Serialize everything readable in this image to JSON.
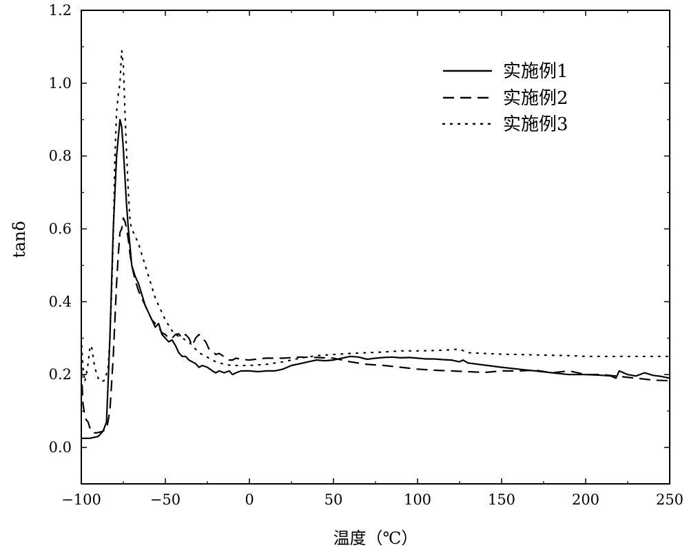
{
  "chart_data": {
    "type": "line",
    "title": "",
    "xlabel": "温度（℃）",
    "ylabel": "tanδ",
    "xlim": [
      -100,
      250
    ],
    "ylim": [
      -0.1,
      1.2
    ],
    "xticks": [
      -100,
      -50,
      0,
      50,
      100,
      150,
      200,
      250
    ],
    "xtick_labels": [
      "−100",
      "−50",
      "0",
      "50",
      "100",
      "150",
      "200",
      "250"
    ],
    "yticks": [
      0.0,
      0.2,
      0.4,
      0.6,
      0.8,
      1.0,
      1.2
    ],
    "ytick_labels": [
      "0.0",
      "0.2",
      "0.4",
      "0.6",
      "0.8",
      "1.0",
      "1.2"
    ],
    "grid": false,
    "legend_position": "top-right",
    "series": [
      {
        "name": "实施例1",
        "style": "solid",
        "x": [
          -100,
          -95,
          -90,
          -87,
          -85,
          -83,
          -81,
          -79,
          -77,
          -76,
          -75,
          -74,
          -73,
          -72,
          -71,
          -70,
          -68,
          -66,
          -64,
          -62,
          -60,
          -58,
          -56,
          -54,
          -52,
          -50,
          -48,
          -46,
          -44,
          -42,
          -40,
          -38,
          -36,
          -34,
          -32,
          -30,
          -28,
          -25,
          -22,
          -20,
          -18,
          -15,
          -12,
          -10,
          -8,
          -5,
          0,
          5,
          10,
          15,
          20,
          25,
          30,
          35,
          40,
          45,
          50,
          55,
          60,
          65,
          70,
          75,
          80,
          85,
          90,
          95,
          100,
          105,
          110,
          115,
          120,
          125,
          127,
          130,
          140,
          150,
          160,
          170,
          180,
          190,
          200,
          210,
          215,
          218,
          220,
          225,
          230,
          235,
          240,
          245,
          250
        ],
        "values": [
          0.025,
          0.025,
          0.03,
          0.045,
          0.07,
          0.3,
          0.6,
          0.8,
          0.9,
          0.88,
          0.82,
          0.74,
          0.66,
          0.6,
          0.55,
          0.5,
          0.47,
          0.45,
          0.42,
          0.39,
          0.37,
          0.35,
          0.33,
          0.34,
          0.31,
          0.3,
          0.29,
          0.295,
          0.28,
          0.26,
          0.25,
          0.25,
          0.24,
          0.235,
          0.23,
          0.22,
          0.225,
          0.22,
          0.21,
          0.205,
          0.21,
          0.205,
          0.21,
          0.2,
          0.205,
          0.21,
          0.21,
          0.208,
          0.21,
          0.21,
          0.215,
          0.225,
          0.23,
          0.235,
          0.24,
          0.238,
          0.24,
          0.245,
          0.25,
          0.248,
          0.242,
          0.245,
          0.247,
          0.248,
          0.246,
          0.247,
          0.245,
          0.243,
          0.243,
          0.241,
          0.24,
          0.235,
          0.24,
          0.232,
          0.226,
          0.22,
          0.215,
          0.21,
          0.205,
          0.2,
          0.2,
          0.198,
          0.196,
          0.19,
          0.21,
          0.2,
          0.196,
          0.205,
          0.198,
          0.195,
          0.19
        ]
      },
      {
        "name": "实施例2",
        "style": "dashed",
        "x": [
          -100,
          -99,
          -98,
          -97,
          -96,
          -95,
          -94,
          -93,
          -91,
          -89,
          -87,
          -85,
          -83,
          -81,
          -80,
          -79,
          -78,
          -77,
          -76,
          -75,
          -74,
          -73,
          -72,
          -71,
          -70,
          -68,
          -66,
          -64,
          -62,
          -60,
          -58,
          -56,
          -54,
          -52,
          -50,
          -48,
          -46,
          -44,
          -42,
          -40,
          -38,
          -36,
          -34,
          -32,
          -30,
          -28,
          -26,
          -24,
          -22,
          -20,
          -18,
          -16,
          -14,
          -12,
          -10,
          -8,
          -5,
          0,
          5,
          10,
          20,
          30,
          40,
          50,
          60,
          70,
          80,
          90,
          100,
          110,
          120,
          130,
          140,
          150,
          160,
          170,
          180,
          190,
          200,
          210,
          220,
          230,
          240,
          250
        ],
        "values": [
          0.22,
          0.12,
          0.09,
          0.075,
          0.07,
          0.055,
          0.045,
          0.04,
          0.04,
          0.042,
          0.045,
          0.05,
          0.1,
          0.25,
          0.35,
          0.45,
          0.53,
          0.59,
          0.6,
          0.63,
          0.62,
          0.6,
          0.57,
          0.53,
          0.5,
          0.46,
          0.43,
          0.41,
          0.39,
          0.37,
          0.35,
          0.34,
          0.33,
          0.315,
          0.31,
          0.3,
          0.3,
          0.31,
          0.312,
          0.3,
          0.31,
          0.3,
          0.28,
          0.3,
          0.31,
          0.3,
          0.29,
          0.27,
          0.265,
          0.255,
          0.258,
          0.252,
          0.245,
          0.24,
          0.24,
          0.245,
          0.242,
          0.24,
          0.243,
          0.245,
          0.245,
          0.248,
          0.247,
          0.245,
          0.235,
          0.228,
          0.225,
          0.22,
          0.215,
          0.212,
          0.21,
          0.208,
          0.206,
          0.21,
          0.21,
          0.212,
          0.205,
          0.21,
          0.2,
          0.2,
          0.195,
          0.19,
          0.185,
          0.183
        ]
      },
      {
        "name": "实施例3",
        "style": "dotted",
        "x": [
          -100,
          -99,
          -98,
          -97,
          -96,
          -95,
          -94,
          -92,
          -90,
          -88,
          -86,
          -84,
          -83,
          -82,
          -81,
          -80,
          -79,
          -78,
          -77,
          -76,
          -75,
          -74,
          -73,
          -72,
          -71,
          -70,
          -68,
          -66,
          -64,
          -62,
          -60,
          -58,
          -56,
          -54,
          -52,
          -50,
          -48,
          -46,
          -44,
          -42,
          -40,
          -38,
          -36,
          -34,
          -32,
          -30,
          -28,
          -26,
          -24,
          -22,
          -20,
          -18,
          -16,
          -14,
          -12,
          -10,
          0,
          10,
          20,
          30,
          40,
          50,
          60,
          70,
          80,
          90,
          100,
          110,
          120,
          125,
          130,
          140,
          150,
          160,
          170,
          180,
          190,
          200,
          210,
          220,
          230,
          240,
          250
        ],
        "values": [
          0.3,
          0.22,
          0.18,
          0.2,
          0.23,
          0.27,
          0.28,
          0.22,
          0.19,
          0.18,
          0.185,
          0.22,
          0.3,
          0.42,
          0.58,
          0.8,
          0.92,
          0.97,
          1.0,
          1.09,
          1.05,
          0.92,
          0.8,
          0.7,
          0.62,
          0.6,
          0.58,
          0.56,
          0.53,
          0.5,
          0.47,
          0.44,
          0.41,
          0.39,
          0.37,
          0.35,
          0.335,
          0.32,
          0.31,
          0.305,
          0.3,
          0.295,
          0.29,
          0.28,
          0.27,
          0.26,
          0.255,
          0.25,
          0.245,
          0.24,
          0.235,
          0.232,
          0.23,
          0.228,
          0.226,
          0.225,
          0.225,
          0.228,
          0.235,
          0.245,
          0.252,
          0.255,
          0.258,
          0.26,
          0.262,
          0.265,
          0.265,
          0.266,
          0.268,
          0.27,
          0.26,
          0.258,
          0.256,
          0.255,
          0.254,
          0.253,
          0.252,
          0.25,
          0.25,
          0.25,
          0.25,
          0.25,
          0.25
        ]
      }
    ]
  },
  "colors": {
    "line": "#000000",
    "background": "#ffffff"
  }
}
